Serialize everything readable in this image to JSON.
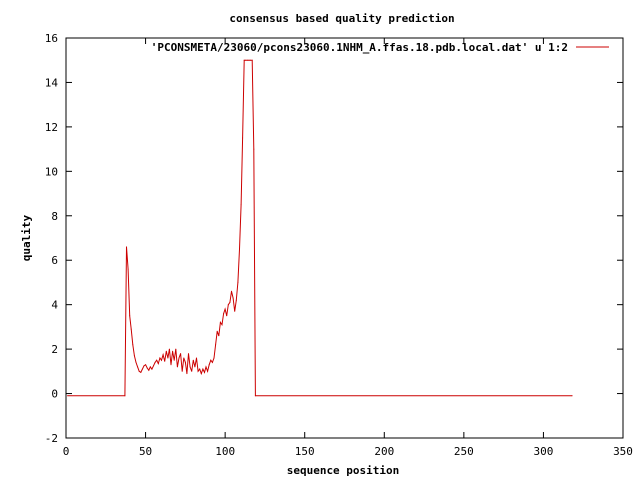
{
  "chart_data": {
    "type": "line",
    "title": "consensus based quality prediction",
    "xlabel": "sequence position",
    "ylabel": "quality",
    "xlim": [
      0,
      350
    ],
    "ylim": [
      -2,
      16
    ],
    "xticks": [
      0,
      50,
      100,
      150,
      200,
      250,
      300,
      350
    ],
    "yticks": [
      -2,
      0,
      2,
      4,
      6,
      8,
      10,
      12,
      14,
      16
    ],
    "grid": false,
    "legend_position": "top-right",
    "series": [
      {
        "name": "'PCONSMETA/23060/pcons23060.1NHM_A.ffas.18.pdb.local.dat' u 1:2",
        "color": "#cc0000",
        "points": [
          [
            1,
            -0.1
          ],
          [
            37,
            -0.1
          ],
          [
            38,
            6.6
          ],
          [
            39,
            5.6
          ],
          [
            40,
            3.5
          ],
          [
            41,
            2.9
          ],
          [
            42,
            2.2
          ],
          [
            43,
            1.7
          ],
          [
            44,
            1.4
          ],
          [
            45,
            1.2
          ],
          [
            46,
            1.0
          ],
          [
            47,
            0.95
          ],
          [
            48,
            1.1
          ],
          [
            49,
            1.25
          ],
          [
            50,
            1.3
          ],
          [
            51,
            1.15
          ],
          [
            52,
            1.05
          ],
          [
            53,
            1.2
          ],
          [
            54,
            1.1
          ],
          [
            55,
            1.25
          ],
          [
            56,
            1.4
          ],
          [
            57,
            1.5
          ],
          [
            58,
            1.35
          ],
          [
            59,
            1.6
          ],
          [
            60,
            1.5
          ],
          [
            61,
            1.75
          ],
          [
            62,
            1.45
          ],
          [
            63,
            1.9
          ],
          [
            64,
            1.6
          ],
          [
            65,
            2.0
          ],
          [
            66,
            1.3
          ],
          [
            67,
            1.9
          ],
          [
            68,
            1.5
          ],
          [
            69,
            2.0
          ],
          [
            70,
            1.2
          ],
          [
            71,
            1.6
          ],
          [
            72,
            1.8
          ],
          [
            73,
            1.0
          ],
          [
            74,
            1.6
          ],
          [
            75,
            1.4
          ],
          [
            76,
            0.9
          ],
          [
            77,
            1.8
          ],
          [
            78,
            1.2
          ],
          [
            79,
            1.0
          ],
          [
            80,
            1.5
          ],
          [
            81,
            1.2
          ],
          [
            82,
            1.6
          ],
          [
            83,
            1.0
          ],
          [
            84,
            1.1
          ],
          [
            85,
            0.9
          ],
          [
            86,
            1.1
          ],
          [
            87,
            0.95
          ],
          [
            88,
            1.2
          ],
          [
            89,
            1.0
          ],
          [
            90,
            1.3
          ],
          [
            91,
            1.5
          ],
          [
            92,
            1.4
          ],
          [
            93,
            1.6
          ],
          [
            94,
            2.2
          ],
          [
            95,
            2.8
          ],
          [
            96,
            2.6
          ],
          [
            97,
            3.2
          ],
          [
            98,
            3.1
          ],
          [
            99,
            3.6
          ],
          [
            100,
            3.8
          ],
          [
            101,
            3.5
          ],
          [
            102,
            4.0
          ],
          [
            103,
            4.1
          ],
          [
            104,
            4.6
          ],
          [
            105,
            4.3
          ],
          [
            106,
            3.7
          ],
          [
            107,
            4.2
          ],
          [
            108,
            5.0
          ],
          [
            109,
            6.5
          ],
          [
            110,
            8.5
          ],
          [
            111,
            11.5
          ],
          [
            112,
            15.0
          ],
          [
            113,
            15.0
          ],
          [
            114,
            15.0
          ],
          [
            115,
            15.0
          ],
          [
            116,
            15.0
          ],
          [
            117,
            15.0
          ],
          [
            118,
            11.0
          ],
          [
            119,
            -0.1
          ],
          [
            318,
            -0.1
          ]
        ]
      }
    ]
  }
}
